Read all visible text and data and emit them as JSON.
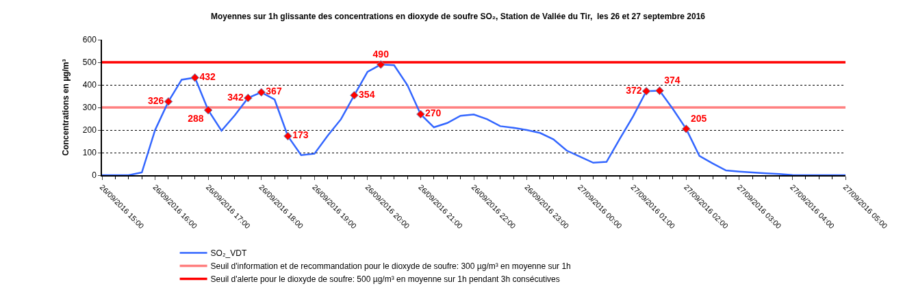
{
  "chart_data": {
    "type": "line",
    "title": "Moyennes sur 1h glissante des concentrations en dioxyde de soufre SO₂, Station de Vallée du Tir,  les 26 et 27 septembre 2016",
    "ylabel": "Concentrations en µg/m³",
    "x": [
      "2016-09-26T15:00",
      "2016-09-26T15:15",
      "2016-09-26T15:30",
      "2016-09-26T15:45",
      "2016-09-26T16:00",
      "2016-09-26T16:15",
      "2016-09-26T16:30",
      "2016-09-26T16:45",
      "2016-09-26T17:00",
      "2016-09-26T17:15",
      "2016-09-26T17:30",
      "2016-09-26T17:45",
      "2016-09-26T18:00",
      "2016-09-26T18:15",
      "2016-09-26T18:30",
      "2016-09-26T18:45",
      "2016-09-26T19:00",
      "2016-09-26T19:15",
      "2016-09-26T19:30",
      "2016-09-26T19:45",
      "2016-09-26T20:00",
      "2016-09-26T20:15",
      "2016-09-26T20:30",
      "2016-09-26T20:45",
      "2016-09-26T21:00",
      "2016-09-26T21:15",
      "2016-09-26T21:30",
      "2016-09-26T21:45",
      "2016-09-26T22:00",
      "2016-09-26T22:15",
      "2016-09-26T22:30",
      "2016-09-26T22:45",
      "2016-09-26T23:00",
      "2016-09-26T23:15",
      "2016-09-26T23:30",
      "2016-09-26T23:45",
      "2016-09-27T00:00",
      "2016-09-27T00:15",
      "2016-09-27T00:30",
      "2016-09-27T00:45",
      "2016-09-27T01:00",
      "2016-09-27T01:15",
      "2016-09-27T01:30",
      "2016-09-27T01:45",
      "2016-09-27T02:00",
      "2016-09-27T02:15",
      "2016-09-27T02:30",
      "2016-09-27T02:45",
      "2016-09-27T03:00",
      "2016-09-27T03:15",
      "2016-09-27T03:30",
      "2016-09-27T03:45",
      "2016-09-27T04:00",
      "2016-09-27T04:15",
      "2016-09-27T04:30",
      "2016-09-27T04:45",
      "2016-09-27T05:00"
    ],
    "series": [
      {
        "name": "SO₂_VDT",
        "color": "#3366ff",
        "marker": "none",
        "line_style": "solid",
        "values": [
          0,
          0,
          0,
          12,
          200,
          326,
          423,
          432,
          288,
          197,
          265,
          342,
          367,
          335,
          173,
          89,
          95,
          175,
          248,
          354,
          458,
          490,
          487,
          399,
          270,
          212,
          231,
          263,
          269,
          248,
          217,
          210,
          200,
          187,
          159,
          109,
          82,
          55,
          59,
          161,
          260,
          372,
          374,
          293,
          205,
          85,
          52,
          21,
          16,
          12,
          8,
          5,
          1,
          0,
          0,
          0,
          0
        ]
      },
      {
        "type": "scatter",
        "color": "#ff0000",
        "marker": "diamond",
        "data_labels": true,
        "x": [
          "2016-09-26T16:15",
          "2016-09-26T16:45",
          "2016-09-26T17:00",
          "2016-09-26T17:45",
          "2016-09-26T18:00",
          "2016-09-26T18:30",
          "2016-09-26T19:45",
          "2016-09-26T20:15",
          "2016-09-26T21:00",
          "2016-09-27T01:15",
          "2016-09-27T01:30",
          "2016-09-27T02:00"
        ],
        "values": [
          326,
          432,
          288,
          342,
          367,
          173,
          354,
          490,
          270,
          372,
          374,
          205
        ]
      }
    ],
    "ref_lines": [
      {
        "axis": "y",
        "value": 300,
        "label": "Seuil d'information et de recommandation pour le dioxyde de soufre: 300 µg/m³ en moyenne sur 1h",
        "color": "#ff8080",
        "line_style": "solid"
      },
      {
        "axis": "y",
        "value": 500,
        "label": "Seuil d'alerte pour le dioxyde de soufre: 500 µg/m³ en moyenne sur 1h pendant 3h consécutives",
        "color": "#ff0000",
        "line_style": "solid"
      }
    ],
    "xlim": [
      "2016-09-26T15:00",
      "2016-09-27T05:00"
    ],
    "xticks": [
      {
        "value": "2016-09-26T15:00",
        "label": "26/09/2016 15:00"
      },
      {
        "value": "2016-09-26T16:00",
        "label": "26/09/2016 16:00"
      },
      {
        "value": "2016-09-26T17:00",
        "label": "26/09/2016 17:00"
      },
      {
        "value": "2016-09-26T18:00",
        "label": "26/09/2016 18:00"
      },
      {
        "value": "2016-09-26T19:00",
        "label": "26/09/2016 19:00"
      },
      {
        "value": "2016-09-26T20:00",
        "label": "26/09/2016 20:00"
      },
      {
        "value": "2016-09-26T21:00",
        "label": "26/09/2016 21:00"
      },
      {
        "value": "2016-09-26T22:00",
        "label": "26/09/2016 22:00"
      },
      {
        "value": "2016-09-26T23:00",
        "label": "26/09/2016 23:00"
      },
      {
        "value": "2016-09-27T00:00",
        "label": "27/09/2016 00:00"
      },
      {
        "value": "2016-09-27T01:00",
        "label": "27/09/2016 01:00"
      },
      {
        "value": "2016-09-27T02:00",
        "label": "27/09/2016 02:00"
      },
      {
        "value": "2016-09-27T03:00",
        "label": "27/09/2016 03:00"
      },
      {
        "value": "2016-09-27T04:00",
        "label": "27/09/2016 04:00"
      },
      {
        "value": "2016-09-27T05:00",
        "label": "27/09/2016 05:00"
      }
    ],
    "ylim": [
      0,
      600
    ],
    "yticks": [
      0,
      100,
      200,
      300,
      400,
      500,
      600
    ],
    "grid": "y",
    "legend": "bottom"
  }
}
